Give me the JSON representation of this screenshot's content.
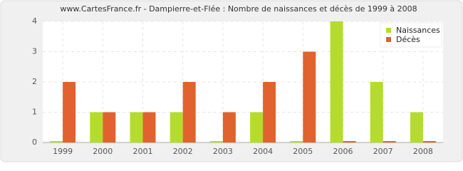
{
  "chart_data": {
    "type": "bar",
    "title": "www.CartesFrance.fr - Dampierre-et-Flée : Nombre de naissances et décès de 1999 à 2008",
    "categories": [
      "1999",
      "2000",
      "2001",
      "2002",
      "2003",
      "2004",
      "2005",
      "2006",
      "2007",
      "2008"
    ],
    "series": [
      {
        "name": "Naissances",
        "color": "#b5dc2d",
        "values": [
          0,
          1,
          1,
          1,
          0,
          1,
          0,
          4,
          2,
          1
        ]
      },
      {
        "name": "Décès",
        "color": "#e0622e",
        "values": [
          2,
          1,
          1,
          2,
          1,
          2,
          3,
          0,
          0,
          0
        ]
      }
    ],
    "ylim": [
      0,
      4
    ],
    "yticks": [
      0,
      1,
      2,
      3,
      4
    ],
    "grid": true,
    "legend": "top-right"
  }
}
